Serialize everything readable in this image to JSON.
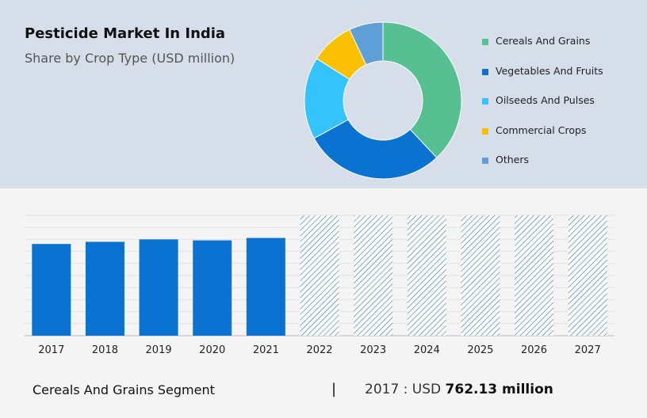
{
  "header": {
    "title": "Pesticide Market In India",
    "subtitle": "Share by Crop Type (USD million)"
  },
  "colors": {
    "top_background": "#d5dee9",
    "bottom_background": "#f4f4f4",
    "bar": "#0a72d0",
    "hatch": "#2b6fb7"
  },
  "chart_data": [
    {
      "type": "pie",
      "variant": "donut",
      "title": "",
      "legend_placement": "right",
      "slices": [
        {
          "name": "Cereals And Grains",
          "value": 38,
          "color": "#56c093"
        },
        {
          "name": "Vegetables And Fruits",
          "value": 29,
          "color": "#0a72d0"
        },
        {
          "name": "Oilseeds And Pulses",
          "value": 17,
          "color": "#35c3fb"
        },
        {
          "name": "Commercial Crops",
          "value": 9,
          "color": "#fcc002"
        },
        {
          "name": "Others",
          "value": 7,
          "color": "#5f9fd8"
        }
      ]
    },
    {
      "type": "bar",
      "categories": [
        "2017",
        "2018",
        "2019",
        "2020",
        "2021",
        "2022",
        "2023",
        "2024",
        "2025",
        "2026",
        "2027"
      ],
      "values": [
        762.13,
        780,
        800,
        792,
        812,
        null,
        null,
        null,
        null,
        null,
        null
      ],
      "forecast_categories": [
        "2022",
        "2023",
        "2024",
        "2025",
        "2026",
        "2027"
      ],
      "ylim": [
        0,
        1000
      ],
      "grid": true,
      "xlabel": "",
      "ylabel": ""
    }
  ],
  "footer": {
    "segment": "Cereals And Grains Segment",
    "divider": "|",
    "value_prefix": "2017 : USD",
    "value_bold": "762.13 million"
  }
}
